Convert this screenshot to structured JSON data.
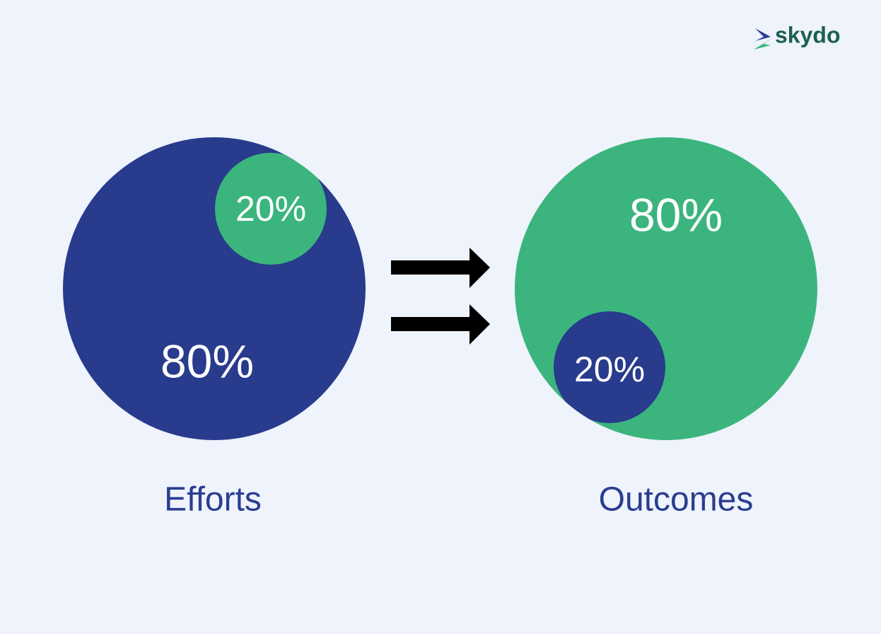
{
  "logo": {
    "text": "skydo"
  },
  "panels": [
    {
      "caption": "Efforts",
      "large_label": "80%",
      "small_label": "20%"
    },
    {
      "caption": "Outcomes",
      "large_label": "80%",
      "small_label": "20%"
    }
  ]
}
